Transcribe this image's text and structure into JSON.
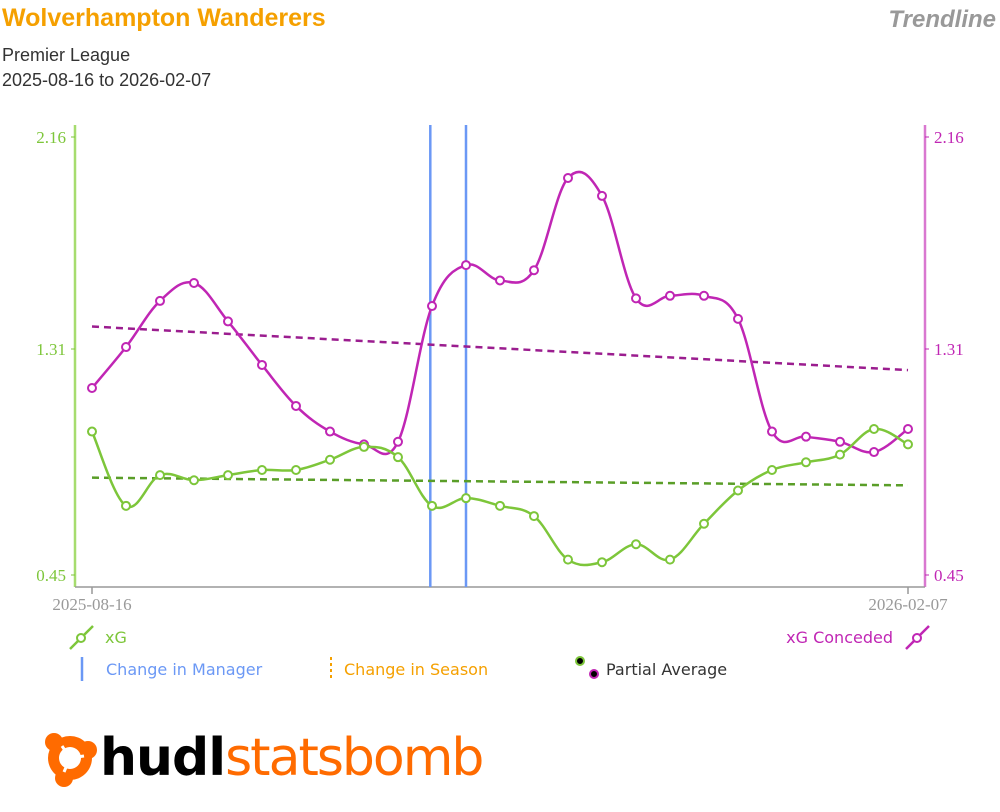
{
  "header": {
    "title": "Wolverhampton Wanderers",
    "competition": "Premier League",
    "date_range": "2025-08-16 to 2026-02-07",
    "chart_kind": "Trendline"
  },
  "colors": {
    "title": "#f5a000",
    "xg": "#7dc63a",
    "xg_trend": "#5a9e28",
    "xga": "#c026b4",
    "xga_trend": "#9b1d8f",
    "manager_change": "#6b98f5",
    "season_change": "#f5a000",
    "axis_grey": "#999999"
  },
  "chart_data": {
    "type": "line",
    "title": "Trendline",
    "x_start_label": "2025-08-16",
    "x_end_label": "2026-02-07",
    "xlabel": "",
    "ylabel_left": "xG",
    "ylabel_right": "xG Conceded",
    "ylim": [
      0.45,
      2.16
    ],
    "yticks": [
      0.45,
      1.31,
      2.16
    ],
    "grid": false,
    "match_index": [
      1,
      2,
      3,
      4,
      5,
      6,
      7,
      8,
      9,
      10,
      11,
      12,
      13,
      14,
      15,
      16,
      17,
      18,
      19,
      20,
      21,
      22,
      23,
      24,
      25
    ],
    "series": [
      {
        "name": "xG",
        "axis": "left",
        "values": [
          1.01,
          0.72,
          0.84,
          0.82,
          0.84,
          0.86,
          0.86,
          0.9,
          0.95,
          0.91,
          0.72,
          0.75,
          0.72,
          0.68,
          0.51,
          0.5,
          0.57,
          0.51,
          0.65,
          0.78,
          0.86,
          0.89,
          0.92,
          1.02,
          0.96
        ]
      },
      {
        "name": "xG Conceded",
        "axis": "right",
        "values": [
          1.18,
          1.34,
          1.52,
          1.59,
          1.44,
          1.27,
          1.11,
          1.01,
          0.96,
          0.97,
          1.5,
          1.66,
          1.6,
          1.64,
          2.0,
          1.93,
          1.53,
          1.54,
          1.54,
          1.45,
          1.01,
          0.99,
          0.97,
          0.93,
          1.02
        ]
      }
    ],
    "trendlines": [
      {
        "name": "xG trend",
        "start": 0.83,
        "end": 0.8
      },
      {
        "name": "xG Conceded trend",
        "start": 1.42,
        "end": 1.25
      }
    ],
    "manager_changes_at_match": [
      10.95,
      12
    ],
    "season_changes_at_match": [],
    "legend": {
      "position": "bottom",
      "entries": [
        "xG",
        "xG Conceded",
        "Change in Manager",
        "Change in Season",
        "Partial Average"
      ]
    }
  },
  "axes": {
    "left_ticks": [
      "2.16",
      "1.31",
      "0.45"
    ],
    "right_ticks": [
      "2.16",
      "1.31",
      "0.45"
    ],
    "x_start": "2025-08-16",
    "x_end": "2026-02-07"
  },
  "legend": {
    "xg": "xG",
    "xga": "xG Conceded",
    "manager": "Change in Manager",
    "season": "Change in Season",
    "partial": "Partial Average"
  },
  "logo": {
    "part1": "hudl",
    "part2": "statsbomb"
  }
}
